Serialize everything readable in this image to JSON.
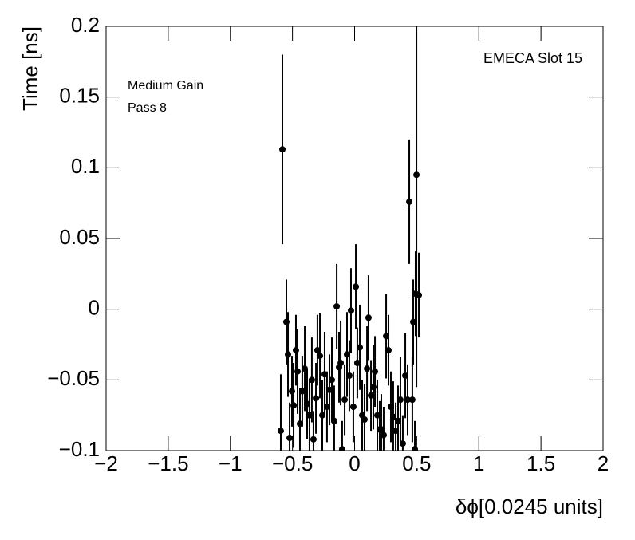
{
  "chart_data": {
    "type": "scatter",
    "annotations": [
      "Medium Gain",
      "Pass 8",
      "EMECA Slot 15"
    ],
    "x_label": "δϕ[0.0245 units]",
    "y_label": "Time [ns]",
    "xlim": [
      -2,
      2
    ],
    "ylim": [
      -0.1,
      0.2
    ],
    "xticks": [
      {
        "value": -2,
        "label": "−2"
      },
      {
        "value": -1.5,
        "label": "−1.5"
      },
      {
        "value": -1,
        "label": "−1"
      },
      {
        "value": -0.5,
        "label": "−0.5"
      },
      0,
      0.5,
      1,
      1.5,
      2
    ],
    "yticks": [
      {
        "value": -0.1,
        "label": "−0.1"
      },
      {
        "value": -0.05,
        "label": "−0.05"
      },
      0,
      0.05,
      0.1,
      0.15,
      0.2
    ],
    "series": [
      {
        "color": "#000000",
        "x": [
          -0.581,
          -0.594,
          -0.549,
          -0.536,
          -0.523,
          -0.504,
          -0.491,
          -0.472,
          -0.459,
          -0.44,
          -0.421,
          -0.401,
          -0.382,
          -0.363,
          -0.344,
          -0.331,
          -0.311,
          -0.299,
          -0.279,
          -0.26,
          -0.241,
          -0.222,
          -0.202,
          -0.183,
          -0.164,
          -0.144,
          -0.125,
          -0.112,
          -0.1,
          -0.08,
          -0.061,
          -0.042,
          -0.029,
          -0.01,
          0.01,
          0.022,
          0.042,
          0.061,
          0.08,
          0.1,
          0.112,
          0.132,
          0.151,
          0.164,
          0.183,
          0.202,
          0.215,
          0.234,
          0.254,
          0.273,
          0.292,
          0.311,
          0.331,
          0.35,
          0.369,
          0.388,
          0.408,
          0.427,
          0.44,
          0.465,
          0.472,
          0.485,
          0.491,
          0.498,
          0.517
        ],
        "values": [
          0.113,
          -0.086,
          -0.009,
          -0.032,
          -0.091,
          -0.058,
          -0.068,
          -0.029,
          -0.044,
          -0.081,
          -0.058,
          -0.042,
          -0.067,
          -0.075,
          -0.05,
          -0.092,
          -0.063,
          -0.029,
          -0.033,
          -0.075,
          -0.046,
          -0.069,
          -0.057,
          -0.05,
          -0.079,
          0.002,
          -0.041,
          -0.038,
          -0.099,
          -0.064,
          -0.032,
          -0.047,
          -0.001,
          -0.069,
          0.016,
          -0.038,
          -0.027,
          -0.075,
          -0.078,
          -0.042,
          -0.006,
          -0.061,
          -0.055,
          -0.044,
          -0.075,
          -0.085,
          -0.085,
          -0.089,
          -0.019,
          -0.029,
          -0.069,
          -0.076,
          -0.086,
          -0.079,
          -0.064,
          -0.095,
          -0.047,
          -0.064,
          0.076,
          -0.064,
          -0.009,
          -0.099,
          0.011,
          0.095,
          0.01
        ],
        "errors": [
          0.067,
          0.04,
          0.03,
          0.03,
          0.025,
          0.025,
          0.03,
          0.025,
          0.03,
          0.025,
          0.025,
          0.03,
          0.025,
          0.025,
          0.03,
          0.02,
          0.025,
          0.025,
          0.03,
          0.025,
          0.03,
          0.025,
          0.025,
          0.03,
          0.025,
          0.03,
          0.025,
          0.03,
          0.02,
          0.025,
          0.03,
          0.025,
          0.03,
          0.025,
          0.03,
          0.025,
          0.03,
          0.025,
          0.025,
          0.03,
          0.03,
          0.025,
          0.03,
          0.025,
          0.025,
          0.02,
          0.025,
          0.02,
          0.03,
          0.025,
          0.025,
          0.025,
          0.02,
          0.025,
          0.03,
          0.02,
          0.03,
          0.025,
          0.044,
          0.03,
          0.03,
          0.02,
          0.03,
          0.15,
          0.03
        ]
      }
    ]
  }
}
